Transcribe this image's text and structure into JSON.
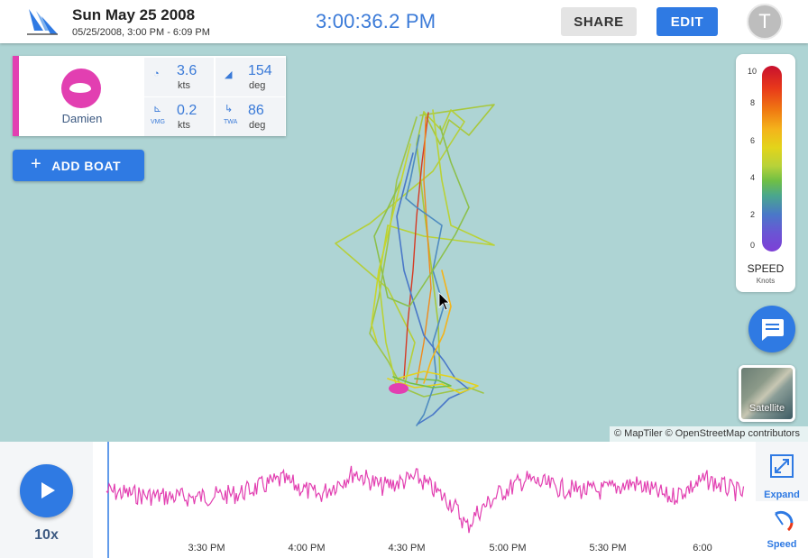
{
  "header": {
    "title": "Sun May 25 2008",
    "subtitle": "05/25/2008, 3:00 PM - 6:09 PM",
    "clock": "3:00:36.2 PM",
    "share_label": "SHARE",
    "edit_label": "EDIT",
    "avatar_initial": "T"
  },
  "boat": {
    "name": "Damien",
    "color": "#e23fb1",
    "stats": {
      "speed": {
        "value": "3.6",
        "unit": "kts"
      },
      "heading": {
        "value": "154",
        "unit": "deg"
      },
      "vmg": {
        "label": "VMG",
        "value": "0.2",
        "unit": "kts"
      },
      "twa": {
        "label": "TWA",
        "value": "86",
        "unit": "deg"
      }
    }
  },
  "add_boat_label": "ADD BOAT",
  "legend": {
    "ticks": [
      "10",
      "8",
      "6",
      "4",
      "2",
      "0"
    ],
    "title": "SPEED",
    "subtitle": "Knots"
  },
  "satellite_label": "Satellite",
  "attribution": "© MapTiler © OpenStreetMap contributors",
  "playback": {
    "speed_multiplier": "10x"
  },
  "timeline": {
    "tick_labels": [
      "3:30 PM",
      "4:00 PM",
      "4:30 PM",
      "5:00 PM",
      "5:30 PM",
      "6:00"
    ],
    "trace_color": "#e23fb1",
    "cursor_color": "#2f7ae3"
  },
  "tools": {
    "expand_label": "Expand",
    "speed_label": "Speed"
  },
  "colors": {
    "accent": "#2f7ae3",
    "water": "#aed4d4",
    "boat": "#e23fb1"
  }
}
